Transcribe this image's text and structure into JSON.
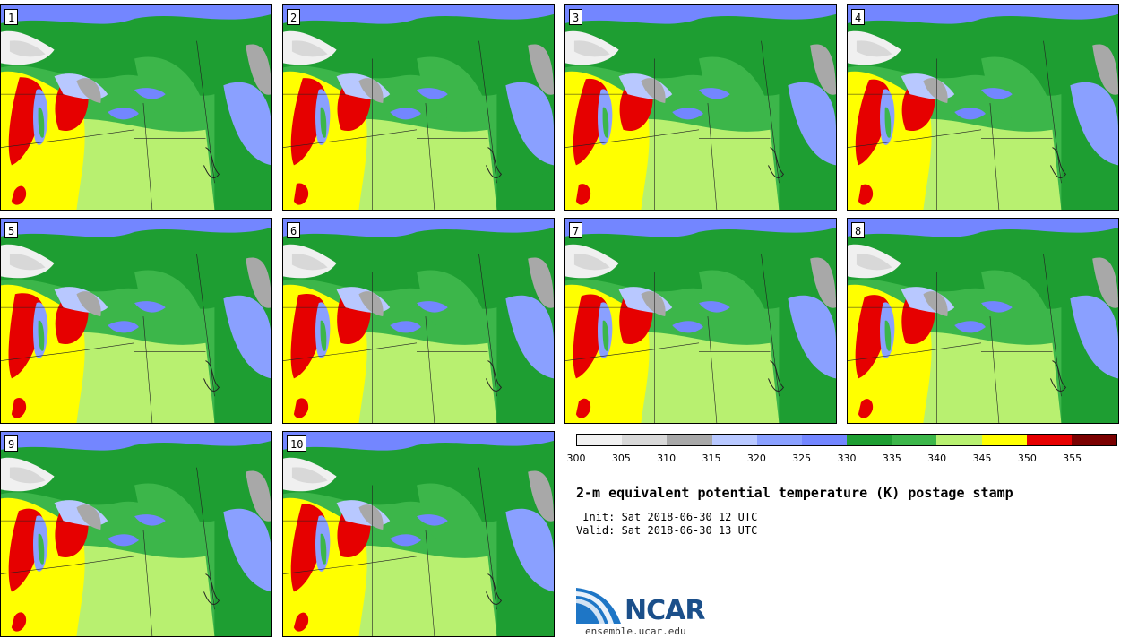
{
  "stamps": [
    "1",
    "2",
    "3",
    "4",
    "5",
    "6",
    "7",
    "8",
    "9",
    "10"
  ],
  "colorbar": {
    "levels": [
      300,
      305,
      310,
      315,
      320,
      325,
      330,
      335,
      340,
      345,
      350,
      355
    ],
    "tick_labels": [
      "300",
      "305",
      "310",
      "315",
      "320",
      "325",
      "330",
      "335",
      "340",
      "345",
      "350",
      "355"
    ],
    "colors": [
      "#f0f0f0",
      "#d8d8d8",
      "#a8a8a8",
      "#b8c8ff",
      "#8aa0ff",
      "#7386ff",
      "#1e9e32",
      "#3cb64a",
      "#b8f070",
      "#ffff00",
      "#e60000",
      "#7a0000"
    ]
  },
  "title": "2-m equivalent potential temperature (K) postage stamp",
  "init": " Init: Sat 2018-06-30 12 UTC",
  "valid": "Valid: Sat 2018-06-30 13 UTC",
  "logo": {
    "name": "NCAR",
    "site": "ensemble.ucar.edu"
  }
}
